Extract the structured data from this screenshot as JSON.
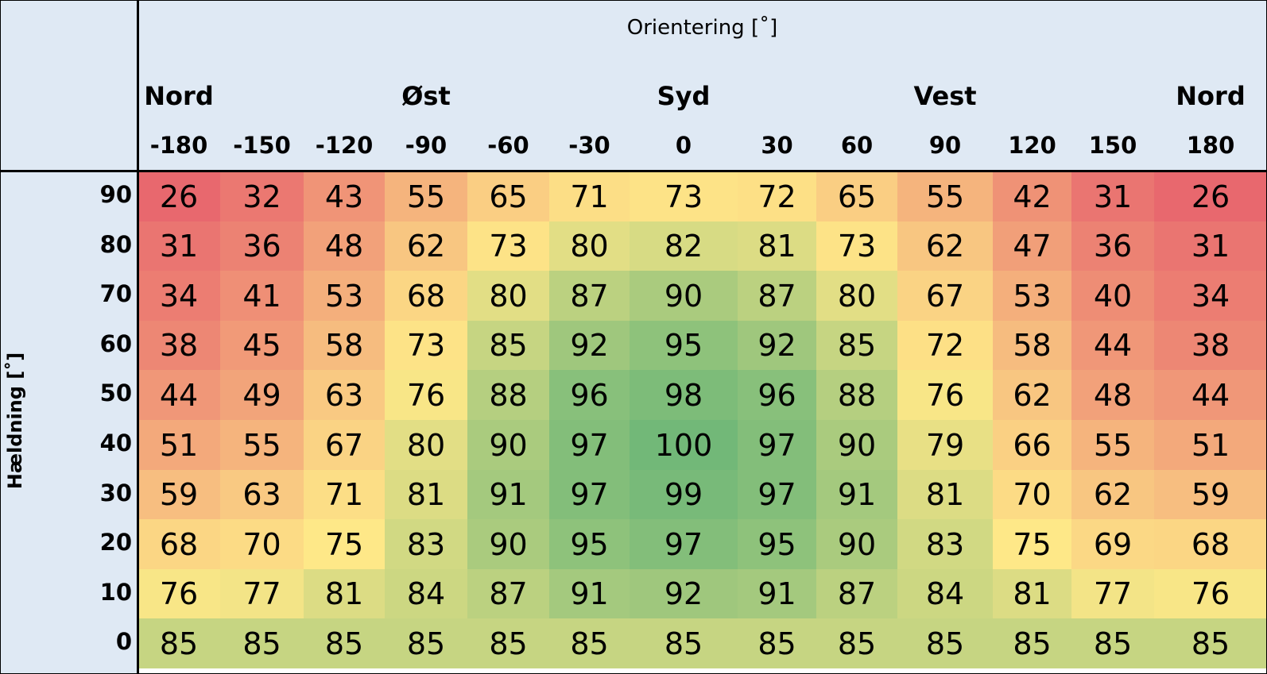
{
  "chart_data": {
    "type": "heatmap",
    "title": "Orientering [˚]",
    "ylabel": "Hældning [˚]",
    "direction_labels": [
      {
        "label": "Nord",
        "at": "-180"
      },
      {
        "label": "Øst",
        "at": "-90"
      },
      {
        "label": "Syd",
        "at": "0"
      },
      {
        "label": "Vest",
        "at": "90"
      },
      {
        "label": "Nord",
        "at": "180"
      }
    ],
    "x": [
      "-180",
      "-150",
      "-120",
      "-90",
      "-60",
      "-30",
      "0",
      "30",
      "60",
      "90",
      "120",
      "150",
      "180"
    ],
    "y": [
      "90",
      "80",
      "70",
      "60",
      "50",
      "40",
      "30",
      "20",
      "10",
      "0"
    ],
    "values": [
      [
        26,
        32,
        43,
        55,
        65,
        71,
        73,
        72,
        65,
        55,
        42,
        31,
        26
      ],
      [
        31,
        36,
        48,
        62,
        73,
        80,
        82,
        81,
        73,
        62,
        47,
        36,
        31
      ],
      [
        34,
        41,
        53,
        68,
        80,
        87,
        90,
        87,
        80,
        67,
        53,
        40,
        34
      ],
      [
        38,
        45,
        58,
        73,
        85,
        92,
        95,
        92,
        85,
        72,
        58,
        44,
        38
      ],
      [
        44,
        49,
        63,
        76,
        88,
        96,
        98,
        96,
        88,
        76,
        62,
        48,
        44
      ],
      [
        51,
        55,
        67,
        80,
        90,
        97,
        100,
        97,
        90,
        79,
        66,
        55,
        51
      ],
      [
        59,
        63,
        71,
        81,
        91,
        97,
        99,
        97,
        91,
        81,
        70,
        62,
        59
      ],
      [
        68,
        70,
        75,
        83,
        90,
        95,
        97,
        95,
        90,
        83,
        75,
        69,
        68
      ],
      [
        76,
        77,
        81,
        84,
        87,
        91,
        92,
        91,
        87,
        84,
        81,
        77,
        76
      ],
      [
        85,
        85,
        85,
        85,
        85,
        85,
        85,
        85,
        85,
        85,
        85,
        85,
        85
      ]
    ],
    "color_scale": {
      "low": "#e8686e",
      "mid": "#fee888",
      "high": "#72b878",
      "min": 26,
      "mid_value": 75,
      "max": 100
    },
    "header_background": "#dfe9f4"
  }
}
